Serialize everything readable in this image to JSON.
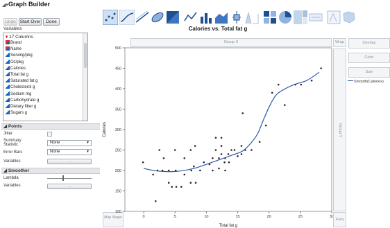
{
  "window": {
    "title": "Graph Builder",
    "collapse_icon": "disclosure-triangle"
  },
  "buttons": {
    "undo": "Undo",
    "start_over": "Start Over",
    "done": "Done"
  },
  "variables": {
    "section_label": "Variables",
    "count_label": "17 Columns",
    "columns": [
      {
        "name": "Brand",
        "type": "nominal"
      },
      {
        "name": "Name",
        "type": "nominal"
      },
      {
        "name": "Serving/pkg",
        "type": "continuous"
      },
      {
        "name": "Oz/pkg",
        "type": "continuous"
      },
      {
        "name": "Calories",
        "type": "continuous"
      },
      {
        "name": "Total fat g",
        "type": "continuous"
      },
      {
        "name": "Saturated fat g",
        "type": "continuous"
      },
      {
        "name": "Cholesterol g",
        "type": "continuous"
      },
      {
        "name": "Sodium mg",
        "type": "continuous"
      },
      {
        "name": "Carbohydrate g",
        "type": "continuous"
      },
      {
        "name": "Dietary fiber g",
        "type": "continuous"
      },
      {
        "name": "Sugars g",
        "type": "continuous"
      }
    ]
  },
  "points": {
    "header": "Points",
    "jitter_label": "Jitter",
    "summary_label": "Summary Statistic",
    "summary_value": "None",
    "error_bars_label": "Error Bars",
    "error_bars_value": "None",
    "variables_label": "Variables",
    "variables_btn": "..."
  },
  "smoother": {
    "header": "Smoother",
    "lambda_label": "Lambda",
    "lambda_value": 0.35,
    "variables_label": "Variables",
    "variables_btn": "..."
  },
  "drop_zones": {
    "group_x": "Group X",
    "group_y": "Group Y",
    "wrap": "Wrap",
    "overlay": "Overlay",
    "color": "Color",
    "size": "Size",
    "map_shape": "Map Shape",
    "freq": "Freq"
  },
  "legend": {
    "label": "Smooth(Calories)"
  },
  "colors": {
    "points": "#2a2a2a",
    "smoother": "#2b59a6",
    "grid": "#d9d9d9"
  },
  "toolbar_icons": [
    "points-icon",
    "smoother-icon",
    "line-of-fit-icon",
    "ellipse-icon",
    "contour-icon",
    "line-icon",
    "bar-icon",
    "area-icon",
    "box-plot-icon",
    "histogram-icon",
    "heatmap-icon",
    "pie-icon",
    "treemap-icon",
    "caption-box-icon",
    "formula-icon",
    "map-shape-icon"
  ],
  "chart_data": {
    "type": "scatter",
    "title": "Calories vs. Total fat g",
    "xlabel": "Total fat g",
    "ylabel": "Calories",
    "xlim": [
      -3,
      30
    ],
    "ylim": [
      100,
      500
    ],
    "xticks": [
      0,
      5,
      10,
      15,
      20,
      25,
      30
    ],
    "yticks": [
      100,
      150,
      200,
      250,
      300,
      350,
      400,
      450,
      500
    ],
    "grid": false,
    "legend_position": "right",
    "series": [
      {
        "name": "",
        "kind": "points",
        "points": [
          [
            -0.1,
            220
          ],
          [
            1.5,
            190
          ],
          [
            1.9,
            125
          ],
          [
            2.5,
            250
          ],
          [
            2.2,
            200
          ],
          [
            3.2,
            230
          ],
          [
            3.0,
            200
          ],
          [
            4.0,
            200
          ],
          [
            4.0,
            170
          ],
          [
            4.5,
            160
          ],
          [
            5.0,
            250
          ],
          [
            5.1,
            200
          ],
          [
            5.2,
            160
          ],
          [
            6.5,
            190
          ],
          [
            6.5,
            230
          ],
          [
            6.0,
            160
          ],
          [
            7.6,
            200
          ],
          [
            7.5,
            170
          ],
          [
            7.5,
            250
          ],
          [
            8.2,
            260
          ],
          [
            8.0,
            210
          ],
          [
            8.3,
            170
          ],
          [
            9.0,
            200
          ],
          [
            9.6,
            220
          ],
          [
            10.5,
            215
          ],
          [
            11.0,
            230
          ],
          [
            11.0,
            200
          ],
          [
            11.5,
            250
          ],
          [
            11.5,
            280
          ],
          [
            12.0,
            230
          ],
          [
            12.0,
            205
          ],
          [
            12.4,
            280
          ],
          [
            12.4,
            260
          ],
          [
            12.4,
            240
          ],
          [
            12.9,
            220
          ],
          [
            13.0,
            200
          ],
          [
            13.0,
            230
          ],
          [
            13.5,
            240
          ],
          [
            13.6,
            220
          ],
          [
            14.0,
            250
          ],
          [
            14.5,
            250
          ],
          [
            15.0,
            235
          ],
          [
            15.6,
            260
          ],
          [
            15.6,
            240
          ],
          [
            15.8,
            340
          ],
          [
            16.2,
            250
          ],
          [
            17.2,
            250
          ],
          [
            18.5,
            270
          ],
          [
            19.5,
            310
          ],
          [
            20.5,
            390
          ],
          [
            21.5,
            410
          ],
          [
            22.5,
            360
          ],
          [
            24.2,
            410
          ],
          [
            25.1,
            410
          ],
          [
            26.8,
            420
          ],
          [
            28.3,
            450
          ]
        ]
      },
      {
        "name": "Smooth(Calories)",
        "kind": "smoother",
        "points": [
          [
            0,
            205
          ],
          [
            2,
            199
          ],
          [
            4,
            197
          ],
          [
            6,
            199
          ],
          [
            8,
            205
          ],
          [
            10,
            215
          ],
          [
            12,
            226
          ],
          [
            14,
            237
          ],
          [
            16,
            250
          ],
          [
            18,
            285
          ],
          [
            19,
            320
          ],
          [
            20,
            355
          ],
          [
            21,
            382
          ],
          [
            22,
            395
          ],
          [
            24,
            410
          ],
          [
            26,
            420
          ],
          [
            28,
            440
          ]
        ]
      }
    ]
  }
}
